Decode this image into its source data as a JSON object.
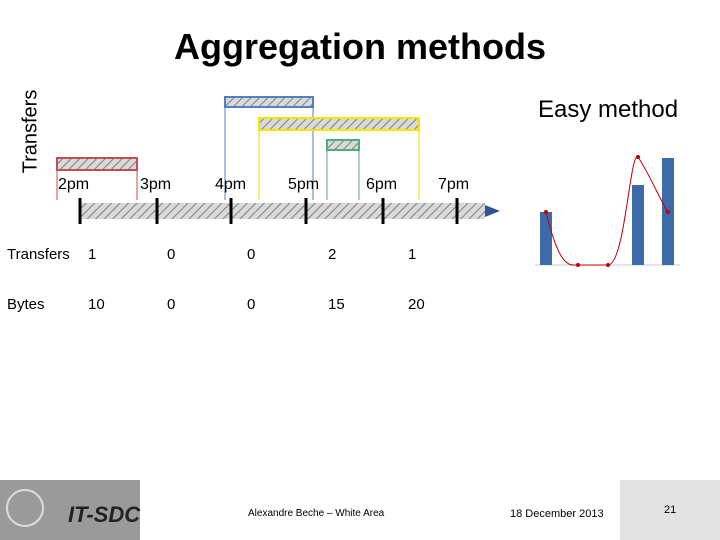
{
  "header": {
    "title": "Aggregation methods",
    "side_label": "Transfers"
  },
  "timeline": {
    "labels": [
      "2pm",
      "3pm",
      "4pm",
      "5pm",
      "6pm",
      "7pm"
    ]
  },
  "inset": {
    "title": "Easy method"
  },
  "table": {
    "rows": [
      [
        "Transfers",
        "1",
        "0",
        "0",
        "2",
        "1"
      ],
      [
        "Bytes",
        "10",
        "0",
        "0",
        "15",
        "20"
      ]
    ]
  },
  "footer": {
    "brand": "IT-SDC",
    "author": "Alexandre Beche – White Area",
    "date": "18 December 2013",
    "page": "21"
  }
}
